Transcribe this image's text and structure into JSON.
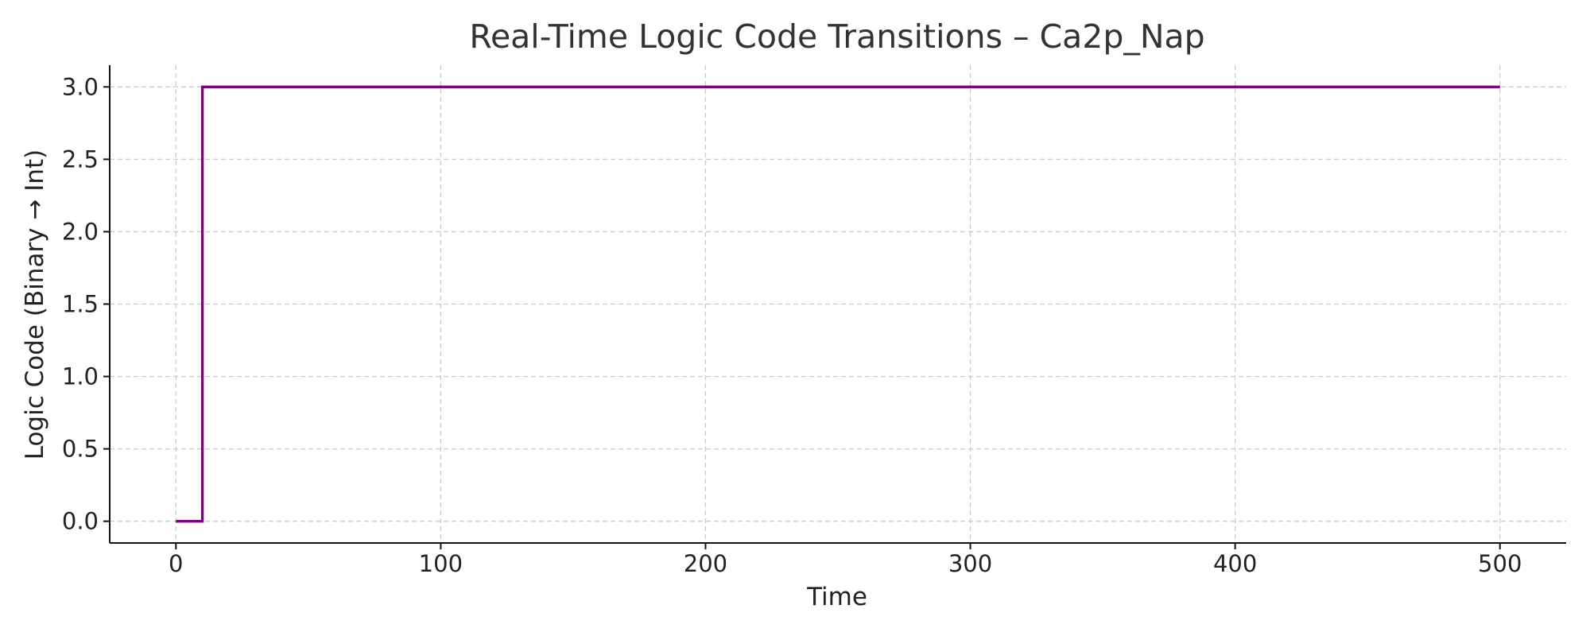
{
  "chart_data": {
    "type": "line",
    "step": true,
    "title": "Real-Time Logic Code Transitions – Ca2p_Nap",
    "xlabel": "Time",
    "ylabel": "Logic Code (Binary → Int)",
    "xlim": [
      -25,
      525
    ],
    "ylim": [
      -0.15,
      3.15
    ],
    "xticks": [
      0,
      100,
      200,
      300,
      400,
      500
    ],
    "xtick_labels": [
      "0",
      "100",
      "200",
      "300",
      "400",
      "500"
    ],
    "yticks": [
      0.0,
      0.5,
      1.0,
      1.5,
      2.0,
      2.5,
      3.0
    ],
    "ytick_labels": [
      "0.0",
      "0.5",
      "1.0",
      "1.5",
      "2.0",
      "2.5",
      "3.0"
    ],
    "grid": true,
    "series": [
      {
        "color": "#800080",
        "x": [
          0,
          10,
          10,
          500
        ],
        "y": [
          0,
          0,
          3,
          3
        ]
      }
    ]
  }
}
